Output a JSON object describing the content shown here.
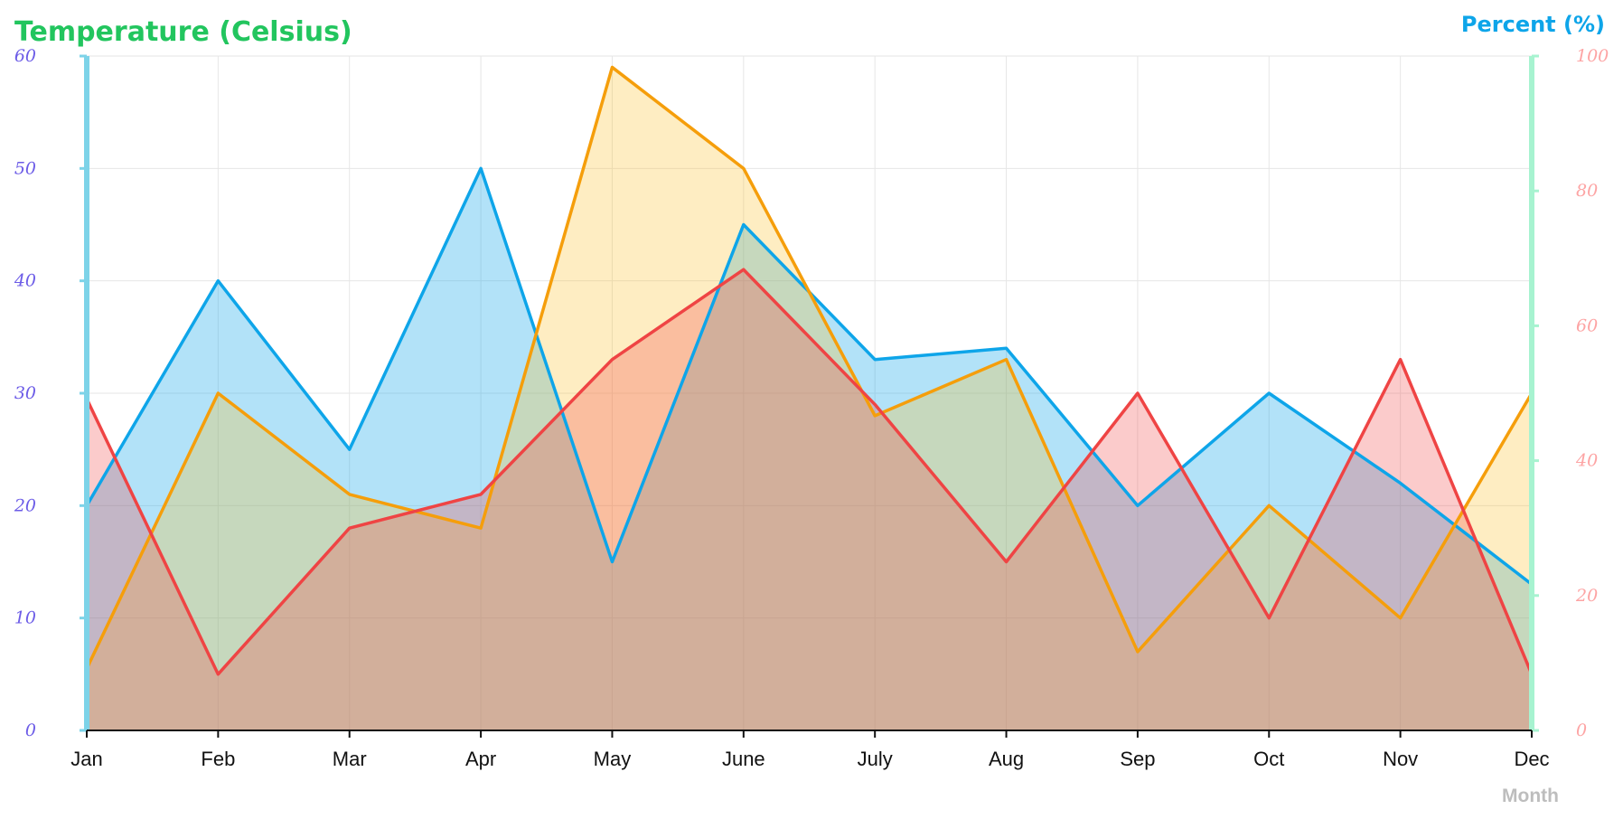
{
  "chart_data": {
    "type": "area",
    "categories": [
      "Jan",
      "Feb",
      "Mar",
      "Apr",
      "May",
      "June",
      "July",
      "Aug",
      "Sep",
      "Oct",
      "Nov",
      "Dec"
    ],
    "xlabel": "Month",
    "ylabel_left": "Temperature (Celsius)",
    "ylabel_right": "Percent (%)",
    "y_left": {
      "range": [
        0,
        60
      ],
      "ticks": [
        "0",
        "10",
        "20",
        "30",
        "40",
        "50",
        "60"
      ]
    },
    "y_right": {
      "range": [
        0,
        100
      ],
      "ticks": [
        "0",
        "20",
        "40",
        "60",
        "80",
        "100"
      ]
    },
    "grid": true,
    "series": [
      {
        "axis": "left",
        "color": "#0ea5e9",
        "fill": "rgba(14,165,233,0.32)",
        "values": [
          20,
          40,
          25,
          50,
          15,
          45,
          33,
          34,
          20,
          30,
          22,
          13
        ]
      },
      {
        "axis": "left",
        "color": "#f59e0b",
        "fill": "rgba(251,191,36,0.28)",
        "values": [
          5.5,
          30,
          21,
          18,
          59,
          50,
          28,
          33,
          7,
          20,
          10,
          30
        ]
      },
      {
        "axis": "left",
        "color": "#ef4444",
        "fill": "rgba(239,68,68,0.28)",
        "values": [
          29.5,
          5,
          18,
          21,
          33,
          41,
          29,
          15,
          30,
          10,
          33,
          5
        ]
      }
    ],
    "colors": {
      "ylabel_left": "#22c55e",
      "ylabel_right": "#0ea5e9",
      "xlabel": "#bdbdbd",
      "left_axis_line": "#7dd3e8",
      "right_axis_line": "#a7f3d0",
      "left_tick_text": "#6c5ce7",
      "right_tick_text": "#fda4a4",
      "x_tick_text": "#111111",
      "grid": "#e6e6e6",
      "baseline": "#111111"
    }
  }
}
